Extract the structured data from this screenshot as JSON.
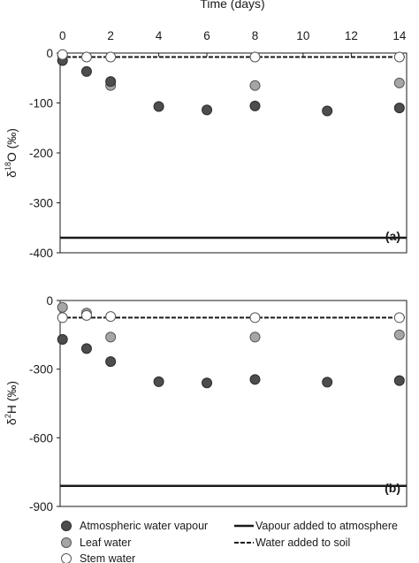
{
  "chart_data": {
    "type": "scatter",
    "xlabel": "Time (days)",
    "x_ticks": [
      "0",
      "2",
      "4",
      "6",
      "8",
      "10",
      "12",
      "14"
    ],
    "xlim": [
      -0.1,
      14.3
    ],
    "legend_position": "bottom",
    "legend": {
      "atmospheric": "Atmospheric water vapour",
      "leaf": "Leaf water",
      "stem": "Stem water",
      "vapour_line": "Vapour added to atmosphere",
      "soil_line": "Water added to soil"
    },
    "colors": {
      "atmospheric": "#4d4d4d",
      "leaf": "#a6a6a6",
      "stem": "#ffffff",
      "line": "#1a1a1a"
    },
    "panels": [
      {
        "label": "(a)",
        "ylabel_main": "δ",
        "ylabel_sup": "18",
        "ylabel_rest": "O (‰)",
        "ylim": [
          -400,
          0
        ],
        "y_ticks": [
          0,
          -100,
          -200,
          -300,
          -400
        ],
        "y_tick_labels": [
          "0",
          "-100",
          "-200",
          "-300",
          "-400"
        ],
        "series": [
          {
            "name": "Atmospheric water vapour",
            "key": "atmospheric",
            "x": [
              0,
              1,
              2,
              4,
              6,
              8,
              11,
              14
            ],
            "y": [
              -15,
              -37,
              -57,
              -107,
              -114,
              -106,
              -116,
              -110
            ]
          },
          {
            "name": "Leaf water",
            "key": "leaf",
            "x": [
              0,
              2,
              8,
              14
            ],
            "y": [
              -5,
              -65,
              -65,
              -60
            ]
          },
          {
            "name": "Stem water",
            "key": "stem",
            "x": [
              0,
              1,
              2,
              8,
              14
            ],
            "y": [
              -3,
              -8,
              -8,
              -8,
              -8
            ]
          }
        ],
        "vapour_added_to_atmosphere": -370,
        "water_added_to_soil": -8
      },
      {
        "label": "(b)",
        "ylabel_main": "δ",
        "ylabel_sup": "2",
        "ylabel_rest": "H (‰)",
        "ylim": [
          -900,
          0
        ],
        "y_ticks": [
          0,
          -300,
          -600,
          -900
        ],
        "y_tick_labels": [
          "0",
          "-300",
          "-600",
          "-900"
        ],
        "series": [
          {
            "name": "Atmospheric water vapour",
            "key": "atmospheric",
            "x": [
              0,
              1,
              2,
              4,
              6,
              8,
              11,
              14
            ],
            "y": [
              -170,
              -210,
              -267,
              -355,
              -360,
              -345,
              -357,
              -350
            ]
          },
          {
            "name": "Leaf water",
            "key": "leaf",
            "x": [
              0,
              1,
              2,
              8,
              14
            ],
            "y": [
              -30,
              -55,
              -160,
              -160,
              -150
            ]
          },
          {
            "name": "Stem water",
            "key": "stem",
            "x": [
              0,
              1,
              2,
              8,
              14
            ],
            "y": [
              -75,
              -65,
              -70,
              -75,
              -75
            ]
          }
        ],
        "vapour_added_to_atmosphere": -810,
        "water_added_to_soil": -75
      }
    ]
  }
}
